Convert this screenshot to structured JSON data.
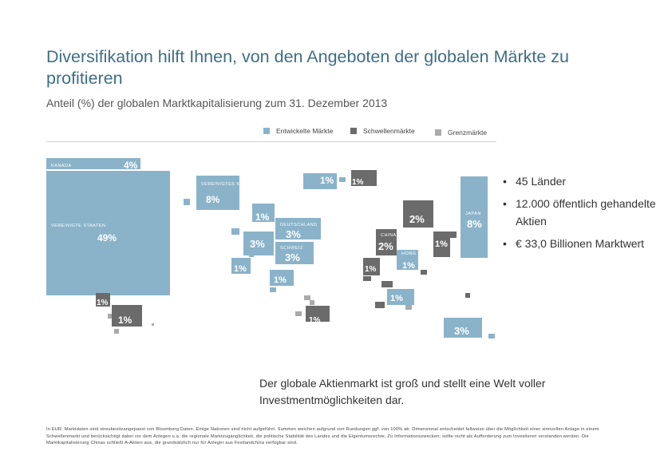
{
  "header": {
    "title": "Diversifikation hilft Ihnen, von den Angeboten der globalen Märkte zu profitieren",
    "subtitle": "Anteil (%) der globalen Marktkapitalisierung zum 31. Dezember 2013"
  },
  "legend": {
    "items": [
      {
        "label": "Entwickelte Märkte",
        "color": "#8ab3c9"
      },
      {
        "label": "Schwellenmärkte",
        "color": "#6b6b6b"
      },
      {
        "label": "Grenzmärkte",
        "color": "#aaaaaa"
      }
    ]
  },
  "colors": {
    "developed": "#8ab3c9",
    "emerging": "#6b6b6b",
    "frontier": "#aaaaaa",
    "title": "#3f6e86"
  },
  "chart_data": {
    "type": "treemap-cartogram",
    "title": "Anteil (%) der globalen Marktkapitalisierung zum 31. Dezember 2013",
    "labeled": [
      {
        "name": "KANADA",
        "value": "4%",
        "market": "developed"
      },
      {
        "name": "VEREINIGTE STAATEN",
        "value": "49%",
        "market": "developed"
      },
      {
        "name": "VEREINIGTES KÖNIGREICH",
        "value": "8%",
        "market": "developed"
      },
      {
        "name": "",
        "value": "1%",
        "market": "developed"
      },
      {
        "name": "",
        "value": "1%",
        "market": "emerging"
      },
      {
        "name": "",
        "value": "1%",
        "market": "developed"
      },
      {
        "name": "DEUTSCHLAND",
        "value": "3%",
        "market": "developed"
      },
      {
        "name": "",
        "value": "3%",
        "market": "developed"
      },
      {
        "name": "SCHWEIZ",
        "value": "3%",
        "market": "developed"
      },
      {
        "name": "",
        "value": "1%",
        "market": "developed"
      },
      {
        "name": "",
        "value": "1%",
        "market": "developed"
      },
      {
        "name": "",
        "value": "2%",
        "market": "emerging"
      },
      {
        "name": "JAPAN",
        "value": "8%",
        "market": "developed"
      },
      {
        "name": "CHINA",
        "value": "2%",
        "market": "emerging"
      },
      {
        "name": "",
        "value": "1%",
        "market": "emerging"
      },
      {
        "name": "",
        "value": "1%",
        "market": "emerging"
      },
      {
        "name": "HONG KONG",
        "value": "1%",
        "market": "developed"
      },
      {
        "name": "",
        "value": "1%",
        "market": "developed"
      },
      {
        "name": "",
        "value": "1%",
        "market": "emerging"
      },
      {
        "name": "",
        "value": "1%",
        "market": "emerging"
      },
      {
        "name": "",
        "value": "1%",
        "market": "emerging"
      },
      {
        "name": "",
        "value": "3%",
        "market": "developed"
      }
    ]
  },
  "bullets": [
    "45 Länder",
    "12.000 öffentlich gehandelte Aktien",
    "€ 33,0 Billionen Marktwert"
  ],
  "tagline": "Der globale Aktienmarkt ist groß und stellt eine Welt voller Investmentmöglichkeiten dar.",
  "footnote": "In EUR. Marktdaten sind streubesitzangepasst von Bloomberg Daten. Einige Nationen sind nicht aufgeführt. Summen weichen aufgrund von Rundungen ggf. von 100% ab. Dimensional entscheidet fallweise über die Möglichkeit einer sinnvollen Anlage in einem Schwellenmarkt und berücksichtigt dabei vor dem Anlegen u.a. die regionale Marktzugänglichkeit, die politische Stabilität des Landes und die Eigentumsrechte. Zu Informationszwecken; sollte nicht als Aufforderung zum Investieren verstanden werden. Die Marktkapitalisierung Chinas schließt A-Aktien aus, die grundsätzlich nur für Anleger aus Festlandchina verfügbar sind."
}
